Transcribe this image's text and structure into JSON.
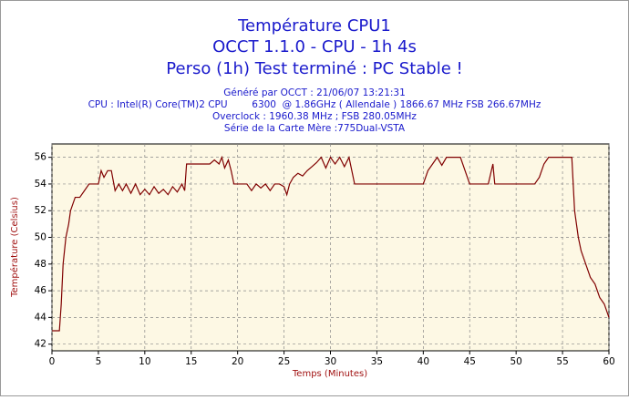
{
  "chart_data": {
    "type": "line",
    "title": "Température CPU1",
    "subtitle": "OCCT 1.1.0 - CPU - 1h 4s",
    "status": "Perso (1h) Test terminé : PC Stable !",
    "info": [
      "Généré par OCCT : 21/06/07 13:21:31",
      "CPU : Intel(R) Core(TM)2 CPU        6300  @ 1.86GHz ( Allendale ) 1866.67 MHz FSB 266.67MHz",
      "Overclock : 1960.38 MHz ; FSB 280.05MHz",
      "Série de la Carte Mère :775Dual-VSTA"
    ],
    "x_label": "Temps (Minutes)",
    "y_label": "Température (Celsius)",
    "xlim": [
      0,
      60
    ],
    "ylim": [
      41.5,
      57
    ],
    "xticks": [
      0,
      5,
      10,
      15,
      20,
      25,
      30,
      35,
      40,
      45,
      50,
      55,
      60
    ],
    "yticks": [
      42,
      44,
      46,
      48,
      50,
      52,
      54,
      56
    ],
    "grid": true,
    "x": [
      0,
      0.3,
      0.8,
      1,
      1.2,
      1.5,
      1.8,
      2,
      2.5,
      3,
      3.5,
      4,
      4.5,
      5,
      5.3,
      5.6,
      6,
      6.4,
      6.8,
      7.2,
      7.6,
      8,
      8.5,
      9,
      9.5,
      10,
      10.5,
      11,
      11.5,
      12,
      12.5,
      13,
      13.5,
      14,
      14.3,
      14.5,
      15,
      16,
      17,
      17.5,
      18,
      18.3,
      18.6,
      19,
      19.3,
      19.6,
      20,
      21,
      21.5,
      22,
      22.5,
      23,
      23.5,
      24,
      24.5,
      25,
      25.3,
      25.6,
      26,
      26.5,
      27,
      27.5,
      28,
      28.5,
      29,
      29.5,
      30,
      30.5,
      31,
      31.5,
      32,
      32.3,
      32.6,
      33,
      35,
      38,
      39,
      40,
      40.5,
      41,
      41.5,
      42,
      42.5,
      43,
      44,
      44.5,
      45,
      46,
      47,
      47.5,
      47.7,
      49,
      51,
      52,
      52.5,
      53,
      53.5,
      54,
      55,
      56,
      56.3,
      56.7,
      57,
      57.5,
      58,
      58.5,
      59,
      59.5,
      60
    ],
    "series": [
      {
        "name": "CPU1",
        "color": "#800000",
        "values": [
          43,
          43,
          43,
          45,
          48,
          50,
          51,
          52,
          53,
          53,
          53.5,
          54,
          54,
          54,
          55,
          54.5,
          55,
          55,
          53.5,
          54,
          53.5,
          54,
          53.3,
          54,
          53.2,
          53.6,
          53.2,
          53.8,
          53.3,
          53.6,
          53.2,
          53.8,
          53.4,
          54,
          53.5,
          55.5,
          55.5,
          55.5,
          55.5,
          55.8,
          55.5,
          56,
          55.2,
          55.8,
          55,
          54,
          54,
          54,
          53.5,
          54,
          53.7,
          54,
          53.5,
          54,
          54,
          53.8,
          53.2,
          54,
          54.5,
          54.8,
          54.6,
          55,
          55.3,
          55.6,
          56,
          55.2,
          56,
          55.5,
          56,
          55.3,
          56,
          55,
          54,
          54,
          54,
          54,
          54,
          54,
          55,
          55.5,
          56,
          55.4,
          56,
          56,
          56,
          55,
          54,
          54,
          54,
          55.5,
          54,
          54,
          54,
          54,
          54.5,
          55.5,
          56,
          56,
          56,
          56,
          52,
          50,
          49,
          48,
          47,
          46.5,
          45.5,
          45,
          44
        ]
      }
    ]
  }
}
